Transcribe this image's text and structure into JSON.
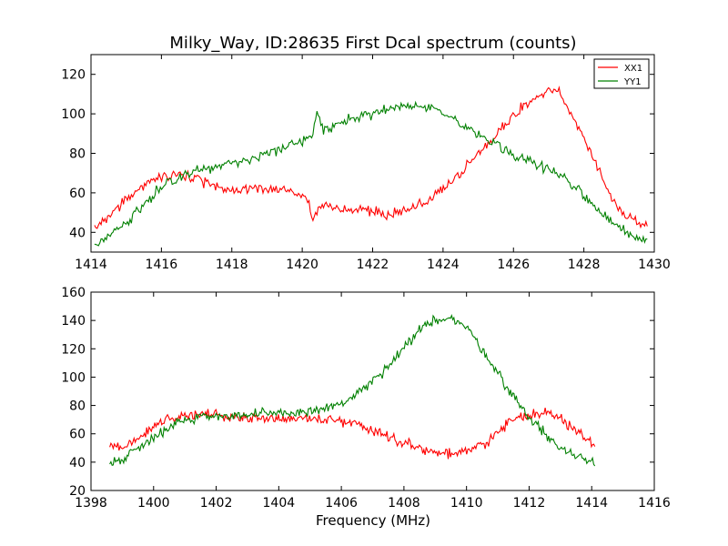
{
  "figure": {
    "title": "Milky_Way, ID:28635 First Dcal spectrum (counts)",
    "xlabel": "Frequency (MHz)"
  },
  "chart_data": [
    {
      "type": "line",
      "xlim": [
        1414,
        1430
      ],
      "ylim": [
        30,
        130
      ],
      "xticks": [
        1414,
        1416,
        1418,
        1420,
        1422,
        1424,
        1426,
        1428,
        1430
      ],
      "yticks": [
        40,
        60,
        80,
        100,
        120
      ],
      "grid": false,
      "legend": "top-right",
      "series": [
        {
          "name": "XX1",
          "color": "#ff0000",
          "x": [
            1414.1,
            1414.5,
            1415,
            1415.5,
            1416,
            1416.5,
            1417,
            1417.5,
            1418,
            1418.5,
            1419,
            1419.5,
            1420,
            1420.2,
            1420.3,
            1420.5,
            1421,
            1421.5,
            1422,
            1422.5,
            1423,
            1423.5,
            1424,
            1424.5,
            1425,
            1425.5,
            1426,
            1426.5,
            1427,
            1427.3,
            1427.5,
            1428,
            1428.5,
            1429,
            1429.5,
            1429.8
          ],
          "y": [
            43,
            47,
            57,
            64,
            68,
            69,
            67,
            64,
            62,
            62,
            62,
            61,
            59,
            55,
            47,
            53,
            52,
            52,
            50,
            49,
            52,
            55,
            62,
            70,
            80,
            89,
            100,
            106,
            112,
            110,
            104,
            88,
            68,
            52,
            44,
            44
          ]
        },
        {
          "name": "YY1",
          "color": "#008000",
          "x": [
            1414.1,
            1414.5,
            1415,
            1415.5,
            1416,
            1416.5,
            1417,
            1417.5,
            1418,
            1418.5,
            1419,
            1419.5,
            1420,
            1420.3,
            1420.4,
            1420.6,
            1421,
            1421.5,
            1422,
            1422.5,
            1423,
            1423.5,
            1424,
            1424.5,
            1425,
            1425.5,
            1426,
            1426.5,
            1427,
            1427.5,
            1428,
            1428.5,
            1429,
            1429.5,
            1429.8
          ],
          "y": [
            35,
            39,
            45,
            54,
            63,
            68,
            71,
            73,
            75,
            77,
            80,
            83,
            86,
            90,
            101,
            92,
            95,
            98,
            100,
            103,
            104,
            103,
            100,
            95,
            89,
            84,
            79,
            76,
            72,
            67,
            59,
            50,
            42,
            37,
            36
          ]
        }
      ]
    },
    {
      "type": "line",
      "xlim": [
        1398,
        1416
      ],
      "ylim": [
        20,
        160
      ],
      "xticks": [
        1398,
        1400,
        1402,
        1404,
        1406,
        1408,
        1410,
        1412,
        1414,
        1416
      ],
      "yticks": [
        20,
        40,
        60,
        80,
        100,
        120,
        140,
        160
      ],
      "grid": false,
      "series": [
        {
          "name": "XX1",
          "color": "#ff0000",
          "x": [
            1398.6,
            1399,
            1399.5,
            1400,
            1400.5,
            1401,
            1401.5,
            1402,
            1402.5,
            1403,
            1403.5,
            1404,
            1404.5,
            1405,
            1405.5,
            1406,
            1406.5,
            1407,
            1407.5,
            1408,
            1408.5,
            1409,
            1409.5,
            1410,
            1410.5,
            1411,
            1411.5,
            1412,
            1412.5,
            1413,
            1413.5,
            1414.1
          ],
          "y": [
            51,
            50,
            56,
            65,
            71,
            73,
            74,
            73,
            72,
            72,
            71,
            71,
            71,
            71,
            70,
            69,
            67,
            63,
            58,
            54,
            50,
            47,
            46,
            47,
            52,
            61,
            70,
            74,
            75,
            71,
            62,
            52
          ]
        },
        {
          "name": "YY1",
          "color": "#008000",
          "x": [
            1398.6,
            1399,
            1399.5,
            1400,
            1400.5,
            1401,
            1401.5,
            1402,
            1402.5,
            1403,
            1403.5,
            1404,
            1404.5,
            1405,
            1405.5,
            1406,
            1406.5,
            1407,
            1407.5,
            1408,
            1408.5,
            1409,
            1409.5,
            1410,
            1410.5,
            1411,
            1411.5,
            1412,
            1412.5,
            1413,
            1413.5,
            1414.1
          ],
          "y": [
            40,
            42,
            50,
            58,
            65,
            70,
            72,
            73,
            73,
            73,
            74,
            74,
            75,
            76,
            78,
            81,
            88,
            97,
            107,
            120,
            133,
            141,
            142,
            135,
            120,
            103,
            86,
            72,
            60,
            50,
            44,
            40
          ]
        }
      ]
    }
  ]
}
